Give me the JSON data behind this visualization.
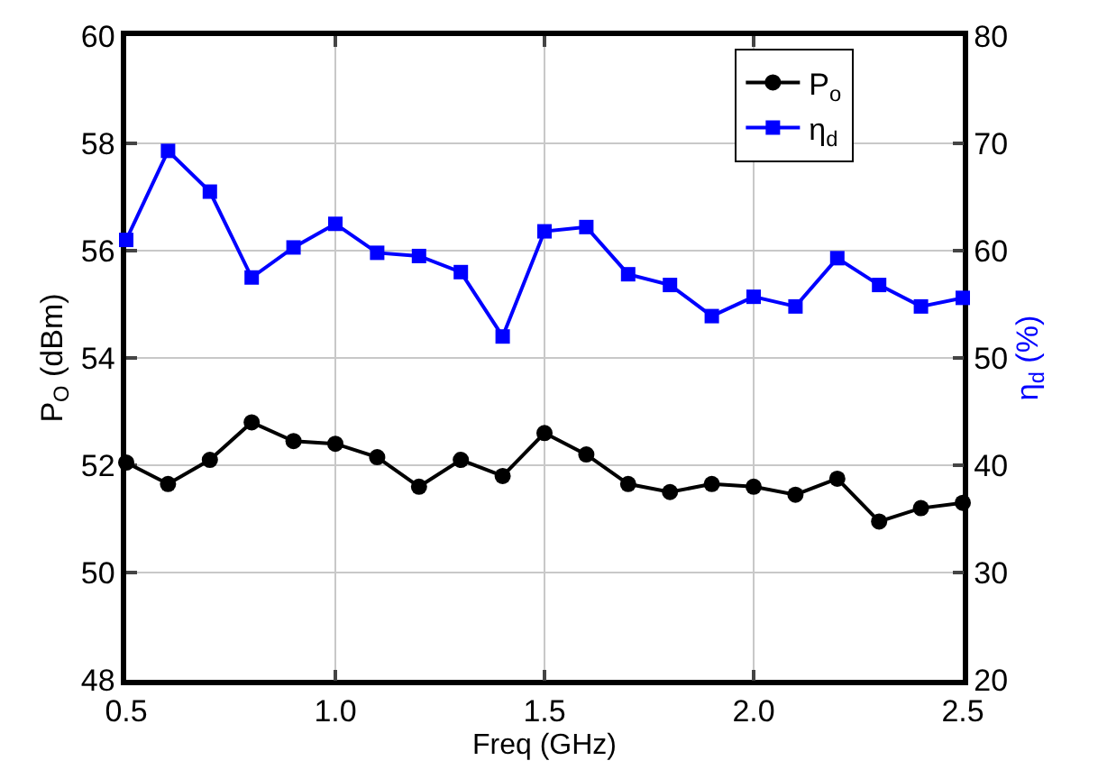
{
  "chart_data": {
    "type": "line",
    "xlabel": "Freq (GHz)",
    "ylabel": "P$_{O}$ (dBm)",
    "y2label": "η$_{d}$ (%)",
    "x": [
      0.5,
      0.6,
      0.7,
      0.8,
      0.9,
      1.0,
      1.1,
      1.2,
      1.3,
      1.4,
      1.5,
      1.6,
      1.7,
      1.8,
      1.9,
      2.0,
      2.1,
      2.2,
      2.3,
      2.4,
      2.5
    ],
    "series": [
      {
        "name": "P$_{o}$",
        "color": "#000000",
        "marker": "circle",
        "values": [
          52.05,
          51.65,
          52.1,
          52.8,
          52.45,
          52.4,
          52.15,
          51.6,
          52.1,
          51.8,
          52.6,
          52.2,
          51.65,
          51.5,
          51.65,
          51.6,
          51.45,
          51.75,
          50.95,
          51.2,
          51.3
        ]
      },
      {
        "name": "η$_{d}$",
        "color": "#0000ff",
        "marker": "square",
        "axis": "y2",
        "values": [
          61.0,
          69.3,
          65.5,
          57.5,
          60.3,
          62.5,
          59.8,
          59.5,
          58.0,
          52.0,
          61.8,
          62.2,
          57.8,
          56.8,
          53.9,
          55.7,
          54.8,
          59.3,
          56.8,
          54.8,
          55.6
        ]
      }
    ],
    "xlim": [
      0.5,
      2.5
    ],
    "xticks": [
      0.5,
      {
        "value": 1,
        "label": "1.0"
      },
      1.5,
      {
        "value": 2,
        "label": "2.0"
      },
      2.5
    ],
    "ylim": [
      48,
      60
    ],
    "yticks": [
      48,
      50,
      52,
      54,
      56,
      58,
      60
    ],
    "y2lim": [
      20,
      80
    ],
    "y2ticks": [
      20,
      30,
      40,
      50,
      60,
      70,
      80
    ],
    "grid": true,
    "legend": "top right",
    "line_style": "solid"
  }
}
